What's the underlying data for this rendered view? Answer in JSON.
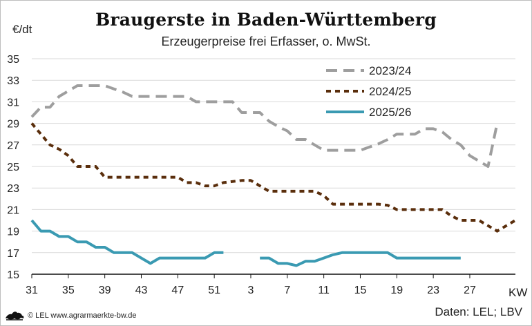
{
  "header": {
    "title": "Braugerste in Baden-Württemberg",
    "subtitle": "Erzeugerpreise frei Erfasser, o. MwSt."
  },
  "axis": {
    "unit": "€/dt",
    "x_unit": "KW"
  },
  "source_label": "Daten: LEL; LBV",
  "footer": {
    "text": "© LEL www.agrarmaerkte-bw.de",
    "logo_icon": "baden-wuerttemberg-lion-logo-icon"
  },
  "chart_data": {
    "type": "line",
    "ylim": [
      15,
      35
    ],
    "yticks": [
      15,
      17,
      19,
      21,
      23,
      25,
      27,
      29,
      31,
      33,
      35
    ],
    "x_tick_labels": [
      "31",
      "35",
      "39",
      "43",
      "47",
      "51",
      "3",
      "7",
      "11",
      "15",
      "19",
      "23",
      "27"
    ],
    "x_tick_step": 4,
    "x_total_weeks": 53,
    "grid": "horizontal",
    "legend_position": "top-right",
    "series": [
      {
        "name": "2023/24",
        "color": "#9e9e9e",
        "dash": "long-dash",
        "values": [
          29.6,
          30.5,
          30.5,
          31.5,
          32,
          32.5,
          32.5,
          32.5,
          32.5,
          32.2,
          31.9,
          31.5,
          31.5,
          31.5,
          31.5,
          31.5,
          31.5,
          31.5,
          31,
          31,
          31,
          31,
          31,
          30,
          30,
          30,
          29.2,
          28.7,
          28.3,
          27.5,
          27.5,
          27,
          26.5,
          26.5,
          26.5,
          26.5,
          26.5,
          26.8,
          27.1,
          27.5,
          28,
          28,
          28,
          28.5,
          28.5,
          28.2,
          27.5,
          27,
          26,
          25.5,
          25,
          29
        ]
      },
      {
        "name": "2024/25",
        "color": "#5a2e0c",
        "dash": "short-dash",
        "values": [
          29,
          28,
          27,
          26.6,
          26,
          25,
          25,
          25,
          24,
          24,
          24,
          24,
          24,
          24,
          24,
          24,
          24,
          23.5,
          23.5,
          23.2,
          23.2,
          23.5,
          23.6,
          23.7,
          23.7,
          23.2,
          22.7,
          22.7,
          22.7,
          22.7,
          22.7,
          22.7,
          22.3,
          21.5,
          21.5,
          21.5,
          21.5,
          21.5,
          21.5,
          21.4,
          21,
          21,
          21,
          21,
          21,
          21,
          20.4,
          20,
          20,
          20,
          19.5,
          19,
          19.5,
          20
        ]
      },
      {
        "name": "2025/26",
        "color": "#3a9ab2",
        "dash": "solid",
        "values": [
          20,
          19,
          19,
          18.5,
          18.5,
          18,
          18,
          17.5,
          17.5,
          17,
          17,
          17,
          16.5,
          16,
          16.5,
          16.5,
          16.5,
          16.5,
          16.5,
          16.5,
          17,
          17,
          null,
          null,
          null,
          16.5,
          16.5,
          16,
          16,
          15.8,
          16.2,
          16.2,
          16.5,
          16.8,
          17,
          17,
          17,
          17,
          17,
          17,
          16.5,
          16.5,
          16.5,
          16.5,
          16.5,
          16.5,
          16.5,
          16.5
        ]
      }
    ]
  }
}
